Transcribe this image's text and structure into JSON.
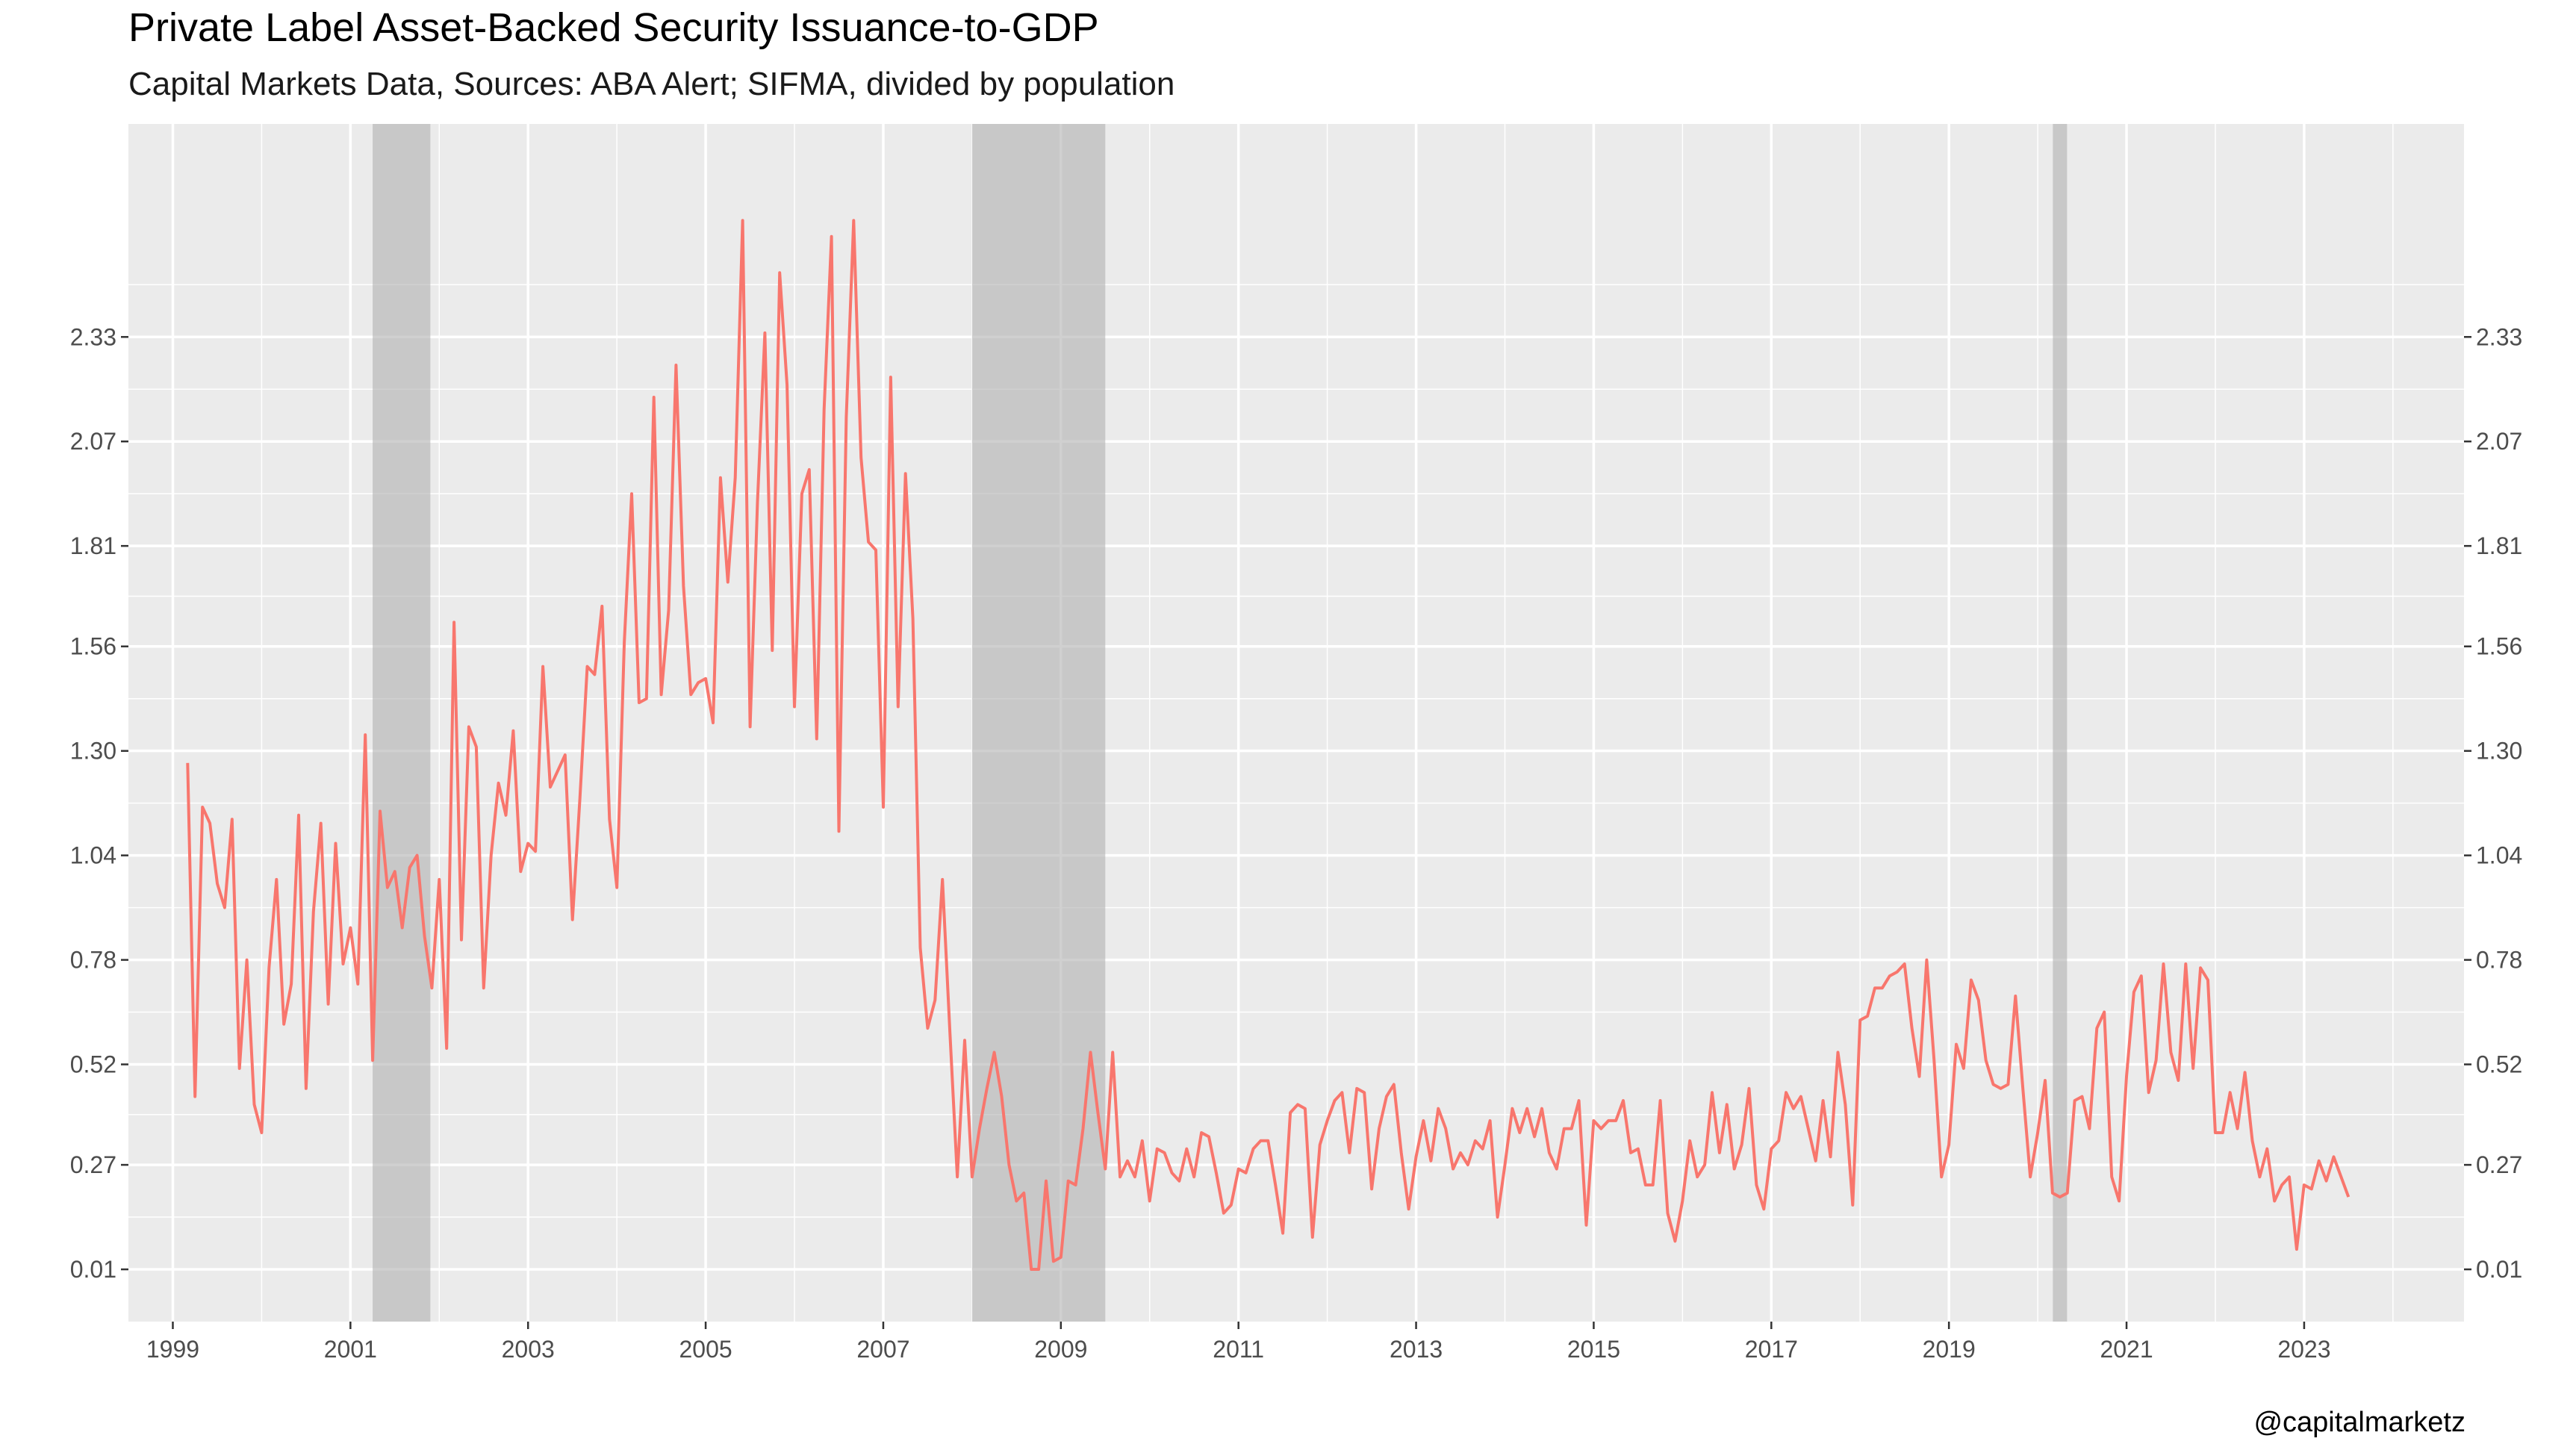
{
  "header": {
    "title": "Private Label Asset-Backed Security Issuance-to-GDP",
    "subtitle": "Capital Markets Data, Sources: ABA Alert; SIFMA, divided by population"
  },
  "caption": "@capitalmarketz",
  "colors": {
    "panel": "#ebebeb",
    "grid_major": "#ffffff",
    "series": "#f8766d",
    "recession": "#b0b0b0"
  },
  "chart_data": {
    "type": "line",
    "title": "Private Label Asset-Backed Security Issuance-to-GDP",
    "subtitle": "Capital Markets Data, Sources: ABA Alert; SIFMA, divided by population",
    "xlabel": "",
    "ylabel": "",
    "xlim": [
      1998.5,
      2024.8
    ],
    "ylim": [
      -0.12,
      2.86
    ],
    "x_ticks": [
      1999,
      2001,
      2003,
      2005,
      2007,
      2009,
      2011,
      2013,
      2015,
      2017,
      2019,
      2021,
      2023
    ],
    "y_ticks": [
      0.01,
      0.27,
      0.52,
      0.78,
      1.04,
      1.3,
      1.56,
      1.81,
      2.07,
      2.33
    ],
    "y_tick_labels": [
      "0.01",
      "0.27",
      "0.52",
      "0.78",
      "1.04",
      "1.30",
      "1.56",
      "1.81",
      "2.07",
      "2.33"
    ],
    "secondary_y_axis": true,
    "grid": true,
    "legend": "none",
    "recessions": [
      {
        "start": 2001.25,
        "end": 2001.9
      },
      {
        "start": 2008.0,
        "end": 2009.5
      },
      {
        "start": 2020.17,
        "end": 2020.33
      }
    ],
    "series": [
      {
        "start": 1999.167,
        "step": 0.08333,
        "values": [
          1.27,
          0.44,
          1.16,
          1.12,
          0.97,
          0.91,
          1.13,
          0.51,
          0.78,
          0.42,
          0.35,
          0.76,
          0.98,
          0.62,
          0.72,
          1.14,
          0.46,
          0.9,
          1.12,
          0.67,
          1.07,
          0.77,
          0.86,
          0.72,
          1.34,
          0.53,
          1.15,
          0.96,
          1.0,
          0.86,
          1.01,
          1.04,
          0.84,
          0.71,
          0.98,
          0.56,
          1.62,
          0.83,
          1.36,
          1.31,
          0.71,
          1.04,
          1.22,
          1.14,
          1.35,
          1.0,
          1.07,
          1.05,
          1.51,
          1.21,
          1.25,
          1.29,
          0.88,
          1.18,
          1.51,
          1.49,
          1.66,
          1.13,
          0.96,
          1.57,
          1.94,
          1.42,
          1.43,
          2.18,
          1.44,
          1.65,
          2.26,
          1.71,
          1.44,
          1.47,
          1.48,
          1.37,
          1.98,
          1.72,
          1.98,
          2.62,
          1.36,
          1.92,
          2.34,
          1.55,
          2.49,
          2.21,
          1.41,
          1.94,
          2.0,
          1.33,
          2.15,
          2.58,
          1.1,
          2.13,
          2.62,
          2.03,
          1.82,
          1.8,
          1.16,
          2.23,
          1.41,
          1.99,
          1.63,
          0.81,
          0.61,
          0.68,
          0.98,
          0.6,
          0.24,
          0.58,
          0.24,
          0.36,
          0.46,
          0.55,
          0.44,
          0.27,
          0.18,
          0.2,
          0.01,
          0.01,
          0.23,
          0.03,
          0.04,
          0.23,
          0.22,
          0.36,
          0.55,
          0.4,
          0.26,
          0.55,
          0.24,
          0.28,
          0.24,
          0.33,
          0.18,
          0.31,
          0.3,
          0.25,
          0.23,
          0.31,
          0.24,
          0.35,
          0.34,
          0.25,
          0.15,
          0.17,
          0.26,
          0.25,
          0.31,
          0.33,
          0.33,
          0.22,
          0.1,
          0.4,
          0.42,
          0.41,
          0.09,
          0.32,
          0.38,
          0.43,
          0.45,
          0.3,
          0.46,
          0.45,
          0.21,
          0.36,
          0.44,
          0.47,
          0.3,
          0.16,
          0.29,
          0.38,
          0.28,
          0.41,
          0.36,
          0.26,
          0.3,
          0.27,
          0.33,
          0.31,
          0.38,
          0.14,
          0.27,
          0.41,
          0.35,
          0.41,
          0.34,
          0.41,
          0.3,
          0.26,
          0.36,
          0.36,
          0.43,
          0.12,
          0.38,
          0.36,
          0.38,
          0.38,
          0.43,
          0.3,
          0.31,
          0.22,
          0.22,
          0.43,
          0.15,
          0.08,
          0.18,
          0.33,
          0.24,
          0.27,
          0.45,
          0.3,
          0.42,
          0.26,
          0.32,
          0.46,
          0.22,
          0.16,
          0.31,
          0.33,
          0.45,
          0.41,
          0.44,
          0.36,
          0.28,
          0.43,
          0.29,
          0.55,
          0.42,
          0.17,
          0.63,
          0.64,
          0.71,
          0.71,
          0.74,
          0.75,
          0.77,
          0.61,
          0.49,
          0.78,
          0.53,
          0.24,
          0.32,
          0.57,
          0.51,
          0.73,
          0.68,
          0.53,
          0.47,
          0.46,
          0.47,
          0.69,
          0.46,
          0.24,
          0.35,
          0.48,
          0.2,
          0.19,
          0.2,
          0.43,
          0.44,
          0.36,
          0.61,
          0.65,
          0.24,
          0.18,
          0.49,
          0.7,
          0.74,
          0.45,
          0.53,
          0.77,
          0.55,
          0.48,
          0.77,
          0.51,
          0.76,
          0.73,
          0.35,
          0.35,
          0.45,
          0.36,
          0.5,
          0.33,
          0.24,
          0.31,
          0.18,
          0.22,
          0.24,
          0.06,
          0.22,
          0.21,
          0.28,
          0.23,
          0.29,
          0.24,
          0.19
        ]
      }
    ]
  }
}
